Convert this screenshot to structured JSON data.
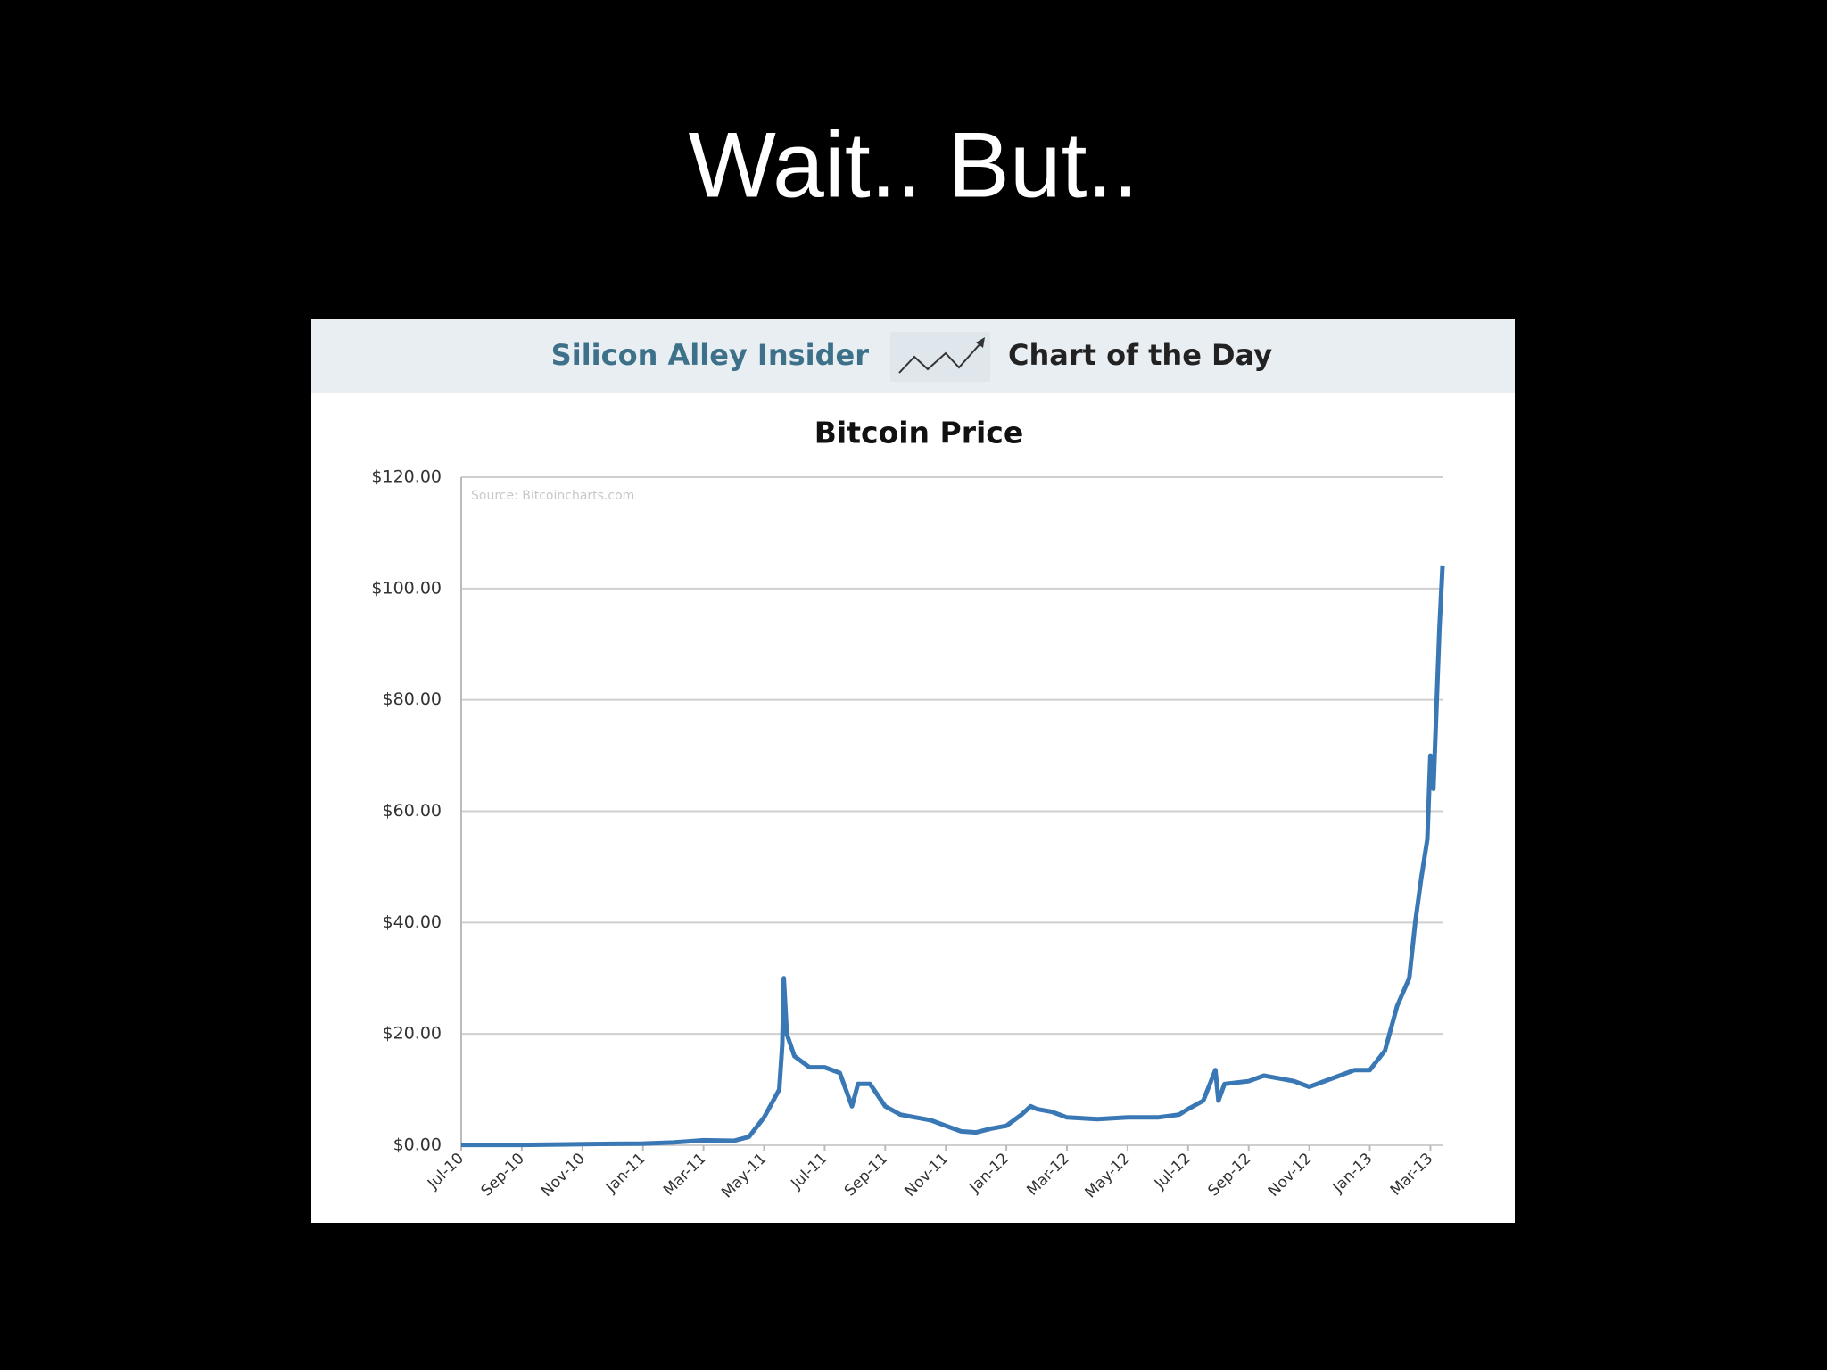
{
  "slide": {
    "title": "Wait.. But.."
  },
  "header": {
    "brand": "Silicon Alley Insider",
    "tagline": "Chart of the Day"
  },
  "chart_data": {
    "type": "line",
    "title": "Bitcoin Price",
    "annotation": "Source: Bitcoincharts.com",
    "grid": true,
    "xlim": [
      0,
      32.4
    ],
    "xticks": [
      {
        "value": 0,
        "label": "Jul-10"
      },
      {
        "value": 2,
        "label": "Sep-10"
      },
      {
        "value": 4,
        "label": "Nov-10"
      },
      {
        "value": 6,
        "label": "Jan-11"
      },
      {
        "value": 8,
        "label": "Mar-11"
      },
      {
        "value": 10,
        "label": "May-11"
      },
      {
        "value": 12,
        "label": "Jul-11"
      },
      {
        "value": 14,
        "label": "Sep-11"
      },
      {
        "value": 16,
        "label": "Nov-11"
      },
      {
        "value": 18,
        "label": "Jan-12"
      },
      {
        "value": 20,
        "label": "Mar-12"
      },
      {
        "value": 22,
        "label": "May-12"
      },
      {
        "value": 24,
        "label": "Jul-12"
      },
      {
        "value": 26,
        "label": "Sep-12"
      },
      {
        "value": 28,
        "label": "Nov-12"
      },
      {
        "value": 30,
        "label": "Jan-13"
      },
      {
        "value": 32,
        "label": "Mar-13"
      }
    ],
    "ylim": [
      0,
      120
    ],
    "yticks": [
      {
        "value": 0,
        "label": "$0.00"
      },
      {
        "value": 20,
        "label": "$20.00"
      },
      {
        "value": 40,
        "label": "$40.00"
      },
      {
        "value": 60,
        "label": "$60.00"
      },
      {
        "value": 80,
        "label": "$80.00"
      },
      {
        "value": 100,
        "label": "$100.00"
      },
      {
        "value": 120,
        "label": "$120.00"
      }
    ],
    "series": [
      {
        "color": "#3a78b5",
        "x": [
          0,
          2,
          4,
          5,
          6,
          7,
          8,
          9,
          9.5,
          10,
          10.3,
          10.5,
          10.6,
          10.65,
          10.75,
          11,
          11.5,
          12,
          12.5,
          12.7,
          12.9,
          13.1,
          13.5,
          14,
          14.5,
          15,
          15.5,
          16,
          16.5,
          17,
          17.5,
          18,
          18.5,
          18.8,
          19,
          19.5,
          20,
          21,
          22,
          23,
          23.7,
          24,
          24.5,
          24.9,
          25,
          25.2,
          26,
          26.5,
          27,
          27.5,
          28,
          29,
          29.5,
          30,
          30.5,
          30.9,
          31.3,
          31.5,
          31.7,
          31.9,
          32,
          32.1,
          32.3,
          32.4
        ],
        "values": [
          0.07,
          0.06,
          0.2,
          0.25,
          0.3,
          0.5,
          0.9,
          0.8,
          1.5,
          5,
          8,
          10,
          18,
          30,
          20,
          16,
          14,
          14,
          13,
          10,
          7,
          11,
          11,
          7,
          5.5,
          5,
          4.5,
          3.5,
          2.5,
          2.3,
          3,
          3.5,
          5.5,
          7,
          6.5,
          6,
          5,
          4.7,
          5,
          5,
          5.5,
          6.5,
          8,
          13.5,
          8,
          11,
          11.5,
          12.5,
          12,
          11.5,
          10.5,
          12.5,
          13.5,
          13.5,
          17,
          25,
          30,
          40,
          48,
          55,
          70,
          64,
          93,
          104
        ]
      }
    ]
  }
}
